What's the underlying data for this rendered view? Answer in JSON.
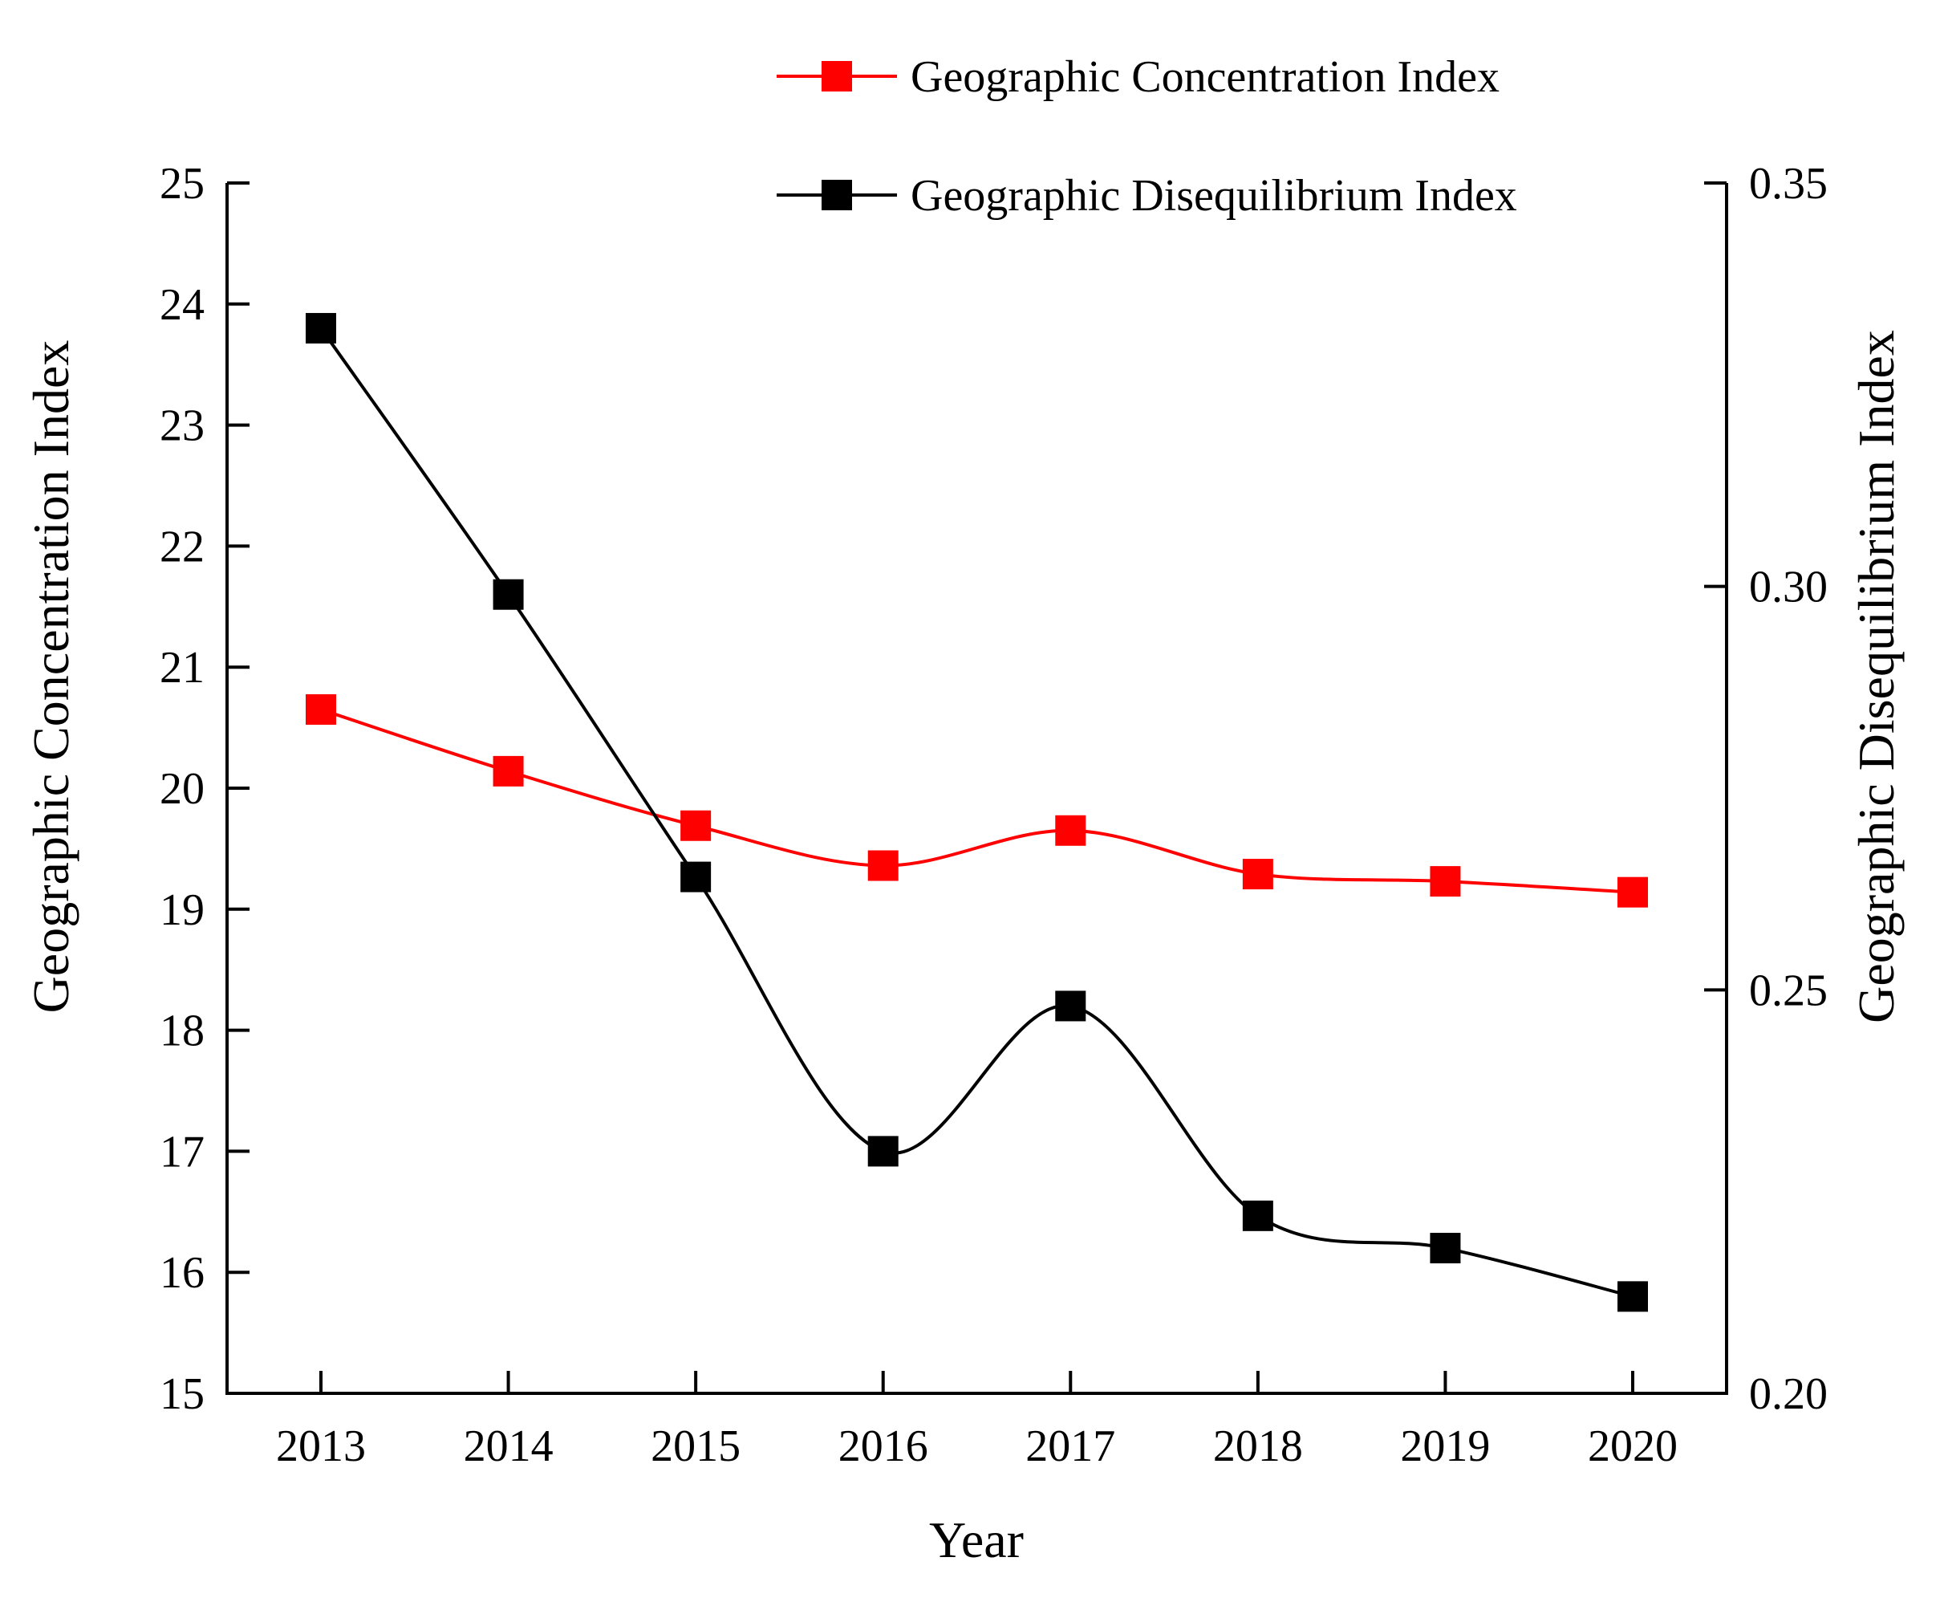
{
  "chart_data": {
    "type": "line",
    "xlabel": "Year",
    "categories": [
      "2013",
      "2014",
      "2015",
      "2016",
      "2017",
      "2018",
      "2019",
      "2020"
    ],
    "y_left": {
      "label": "Geographic Concentration Index",
      "ylim": [
        15,
        25
      ],
      "ticks": [
        "15",
        "16",
        "17",
        "18",
        "19",
        "20",
        "21",
        "22",
        "23",
        "24",
        "25"
      ]
    },
    "y_right": {
      "label": "Geographic Disequilibrium Index",
      "ylim": [
        0.2,
        0.35
      ],
      "ticks": [
        "0.20",
        "0.25",
        "0.30",
        "0.35"
      ]
    },
    "series": [
      {
        "name": "Geographic Concentration Index",
        "axis": "left",
        "color": "#ff0000",
        "values": [
          20.65,
          20.14,
          19.69,
          19.36,
          19.65,
          19.29,
          19.23,
          19.14
        ]
      },
      {
        "name": "Geographic Disequilibrium Index",
        "axis": "right",
        "color": "#000000",
        "values": [
          0.332,
          0.299,
          0.264,
          0.23,
          0.248,
          0.222,
          0.218,
          0.212
        ]
      }
    ],
    "legend_position": "top-right",
    "grid": false
  }
}
